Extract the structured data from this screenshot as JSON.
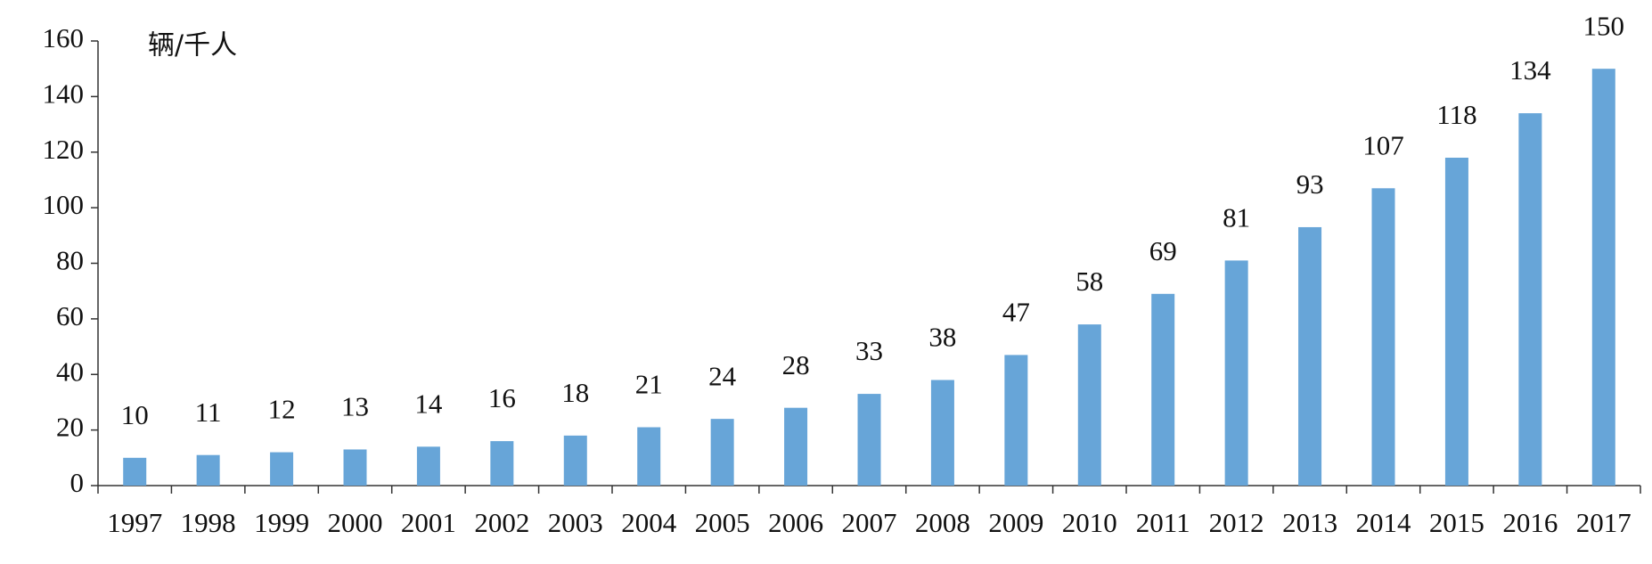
{
  "chart_data": {
    "type": "bar",
    "unit_label": "辆/千人",
    "categories": [
      "1997",
      "1998",
      "1999",
      "2000",
      "2001",
      "2002",
      "2003",
      "2004",
      "2005",
      "2006",
      "2007",
      "2008",
      "2009",
      "2010",
      "2011",
      "2012",
      "2013",
      "2014",
      "2015",
      "2016",
      "2017"
    ],
    "values": [
      10,
      11,
      12,
      13,
      14,
      16,
      18,
      21,
      24,
      28,
      33,
      38,
      47,
      58,
      69,
      81,
      93,
      107,
      118,
      134,
      150
    ],
    "color": "#67a5d8",
    "ylim": [
      0,
      160
    ],
    "yticks": [
      0,
      20,
      40,
      60,
      80,
      100,
      120,
      140,
      160
    ],
    "grid": false,
    "data_labels": true
  }
}
